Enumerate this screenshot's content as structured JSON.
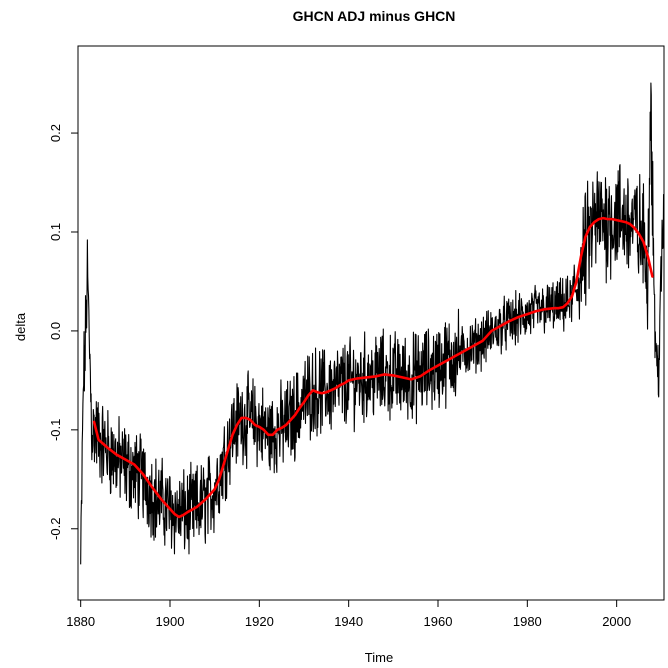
{
  "chart_data": {
    "type": "line",
    "title": "GHCN ADJ minus GHCN",
    "xlabel": "Time",
    "ylabel": "delta",
    "xlim": [
      1879.4,
      2010.6
    ],
    "ylim": [
      -0.272,
      0.288
    ],
    "x_ticks": [
      1880,
      1900,
      1920,
      1940,
      1960,
      1980,
      2000
    ],
    "y_ticks": [
      -0.2,
      -0.1,
      0.0,
      0.1,
      0.2
    ],
    "x_tick_labels": [
      "1880",
      "1900",
      "1920",
      "1940",
      "1960",
      "1980",
      "2000"
    ],
    "y_tick_labels": [
      "-0.2",
      "-0.1",
      "0.0",
      "0.1",
      "0.2"
    ],
    "grid": false,
    "series": [
      {
        "kind": "monthly",
        "color": "#000000",
        "x_start": 1880.0,
        "x_step": 0.083333,
        "anchors": [
          [
            1880.0,
            -0.24
          ],
          [
            1880.3,
            -0.15
          ],
          [
            1880.6,
            -0.05
          ],
          [
            1881.0,
            -0.02
          ],
          [
            1881.5,
            0.06
          ],
          [
            1882.0,
            -0.02
          ],
          [
            1882.5,
            -0.1
          ],
          [
            1883,
            -0.1
          ],
          [
            1885,
            -0.115
          ],
          [
            1888,
            -0.13
          ],
          [
            1891,
            -0.14
          ],
          [
            1894,
            -0.15
          ],
          [
            1897,
            -0.17
          ],
          [
            1900,
            -0.18
          ],
          [
            1902,
            -0.185
          ],
          [
            1904,
            -0.185
          ],
          [
            1906,
            -0.18
          ],
          [
            1908,
            -0.172
          ],
          [
            1910,
            -0.16
          ],
          [
            1912,
            -0.13
          ],
          [
            1914,
            -0.1
          ],
          [
            1916,
            -0.088
          ],
          [
            1918,
            -0.09
          ],
          [
            1920,
            -0.095
          ],
          [
            1922,
            -0.105
          ],
          [
            1924,
            -0.1
          ],
          [
            1926,
            -0.095
          ],
          [
            1928,
            -0.085
          ],
          [
            1930,
            -0.07
          ],
          [
            1932,
            -0.06
          ],
          [
            1934,
            -0.062
          ],
          [
            1937,
            -0.058
          ],
          [
            1940,
            -0.052
          ],
          [
            1943,
            -0.048
          ],
          [
            1946,
            -0.046
          ],
          [
            1950,
            -0.045
          ],
          [
            1954,
            -0.048
          ],
          [
            1958,
            -0.04
          ],
          [
            1962,
            -0.03
          ],
          [
            1966,
            -0.02
          ],
          [
            1970,
            -0.01
          ],
          [
            1974,
            0.005
          ],
          [
            1978,
            0.012
          ],
          [
            1982,
            0.02
          ],
          [
            1986,
            0.024
          ],
          [
            1988,
            0.025
          ],
          [
            1990,
            0.03
          ],
          [
            1991.5,
            0.05
          ],
          [
            1993,
            0.08
          ],
          [
            1995,
            0.11
          ],
          [
            1997,
            0.113
          ],
          [
            2000,
            0.115
          ],
          [
            2003,
            0.11
          ],
          [
            2005,
            0.1
          ],
          [
            2006,
            0.09
          ],
          [
            2007,
            0.06
          ],
          [
            2007.6,
            0.25
          ],
          [
            2008,
            0.15
          ],
          [
            2008.5,
            0.02
          ],
          [
            2009,
            -0.05
          ],
          [
            2009.5,
            -0.02
          ],
          [
            2010,
            0.05
          ],
          [
            2010.5,
            0.12
          ]
        ],
        "noise_amplitude": 0.035
      },
      {
        "kind": "smoothed",
        "color": "#ff0000",
        "points": [
          [
            1883,
            -0.092
          ],
          [
            1884,
            -0.11
          ],
          [
            1886,
            -0.118
          ],
          [
            1888,
            -0.125
          ],
          [
            1890,
            -0.13
          ],
          [
            1892,
            -0.135
          ],
          [
            1894,
            -0.145
          ],
          [
            1896,
            -0.158
          ],
          [
            1898,
            -0.17
          ],
          [
            1900,
            -0.18
          ],
          [
            1901,
            -0.185
          ],
          [
            1902,
            -0.188
          ],
          [
            1903,
            -0.186
          ],
          [
            1904,
            -0.183
          ],
          [
            1906,
            -0.178
          ],
          [
            1908,
            -0.17
          ],
          [
            1910,
            -0.16
          ],
          [
            1911,
            -0.15
          ],
          [
            1912,
            -0.135
          ],
          [
            1913,
            -0.12
          ],
          [
            1914,
            -0.105
          ],
          [
            1915,
            -0.095
          ],
          [
            1916,
            -0.088
          ],
          [
            1917,
            -0.088
          ],
          [
            1918,
            -0.09
          ],
          [
            1919,
            -0.095
          ],
          [
            1920,
            -0.097
          ],
          [
            1921,
            -0.1
          ],
          [
            1922,
            -0.105
          ],
          [
            1923,
            -0.105
          ],
          [
            1924,
            -0.1
          ],
          [
            1925,
            -0.098
          ],
          [
            1926,
            -0.095
          ],
          [
            1927,
            -0.09
          ],
          [
            1928,
            -0.085
          ],
          [
            1929,
            -0.078
          ],
          [
            1930,
            -0.072
          ],
          [
            1931,
            -0.065
          ],
          [
            1932,
            -0.06
          ],
          [
            1933,
            -0.062
          ],
          [
            1934,
            -0.063
          ],
          [
            1935,
            -0.062
          ],
          [
            1936,
            -0.06
          ],
          [
            1937,
            -0.058
          ],
          [
            1938,
            -0.055
          ],
          [
            1939,
            -0.053
          ],
          [
            1940,
            -0.05
          ],
          [
            1942,
            -0.048
          ],
          [
            1944,
            -0.047
          ],
          [
            1946,
            -0.046
          ],
          [
            1948,
            -0.044
          ],
          [
            1950,
            -0.045
          ],
          [
            1952,
            -0.047
          ],
          [
            1954,
            -0.049
          ],
          [
            1956,
            -0.046
          ],
          [
            1958,
            -0.04
          ],
          [
            1960,
            -0.035
          ],
          [
            1962,
            -0.03
          ],
          [
            1964,
            -0.025
          ],
          [
            1966,
            -0.02
          ],
          [
            1968,
            -0.015
          ],
          [
            1970,
            -0.01
          ],
          [
            1972,
            0.0
          ],
          [
            1974,
            0.005
          ],
          [
            1976,
            0.01
          ],
          [
            1978,
            0.014
          ],
          [
            1980,
            0.017
          ],
          [
            1982,
            0.02
          ],
          [
            1984,
            0.022
          ],
          [
            1986,
            0.023
          ],
          [
            1987,
            0.023
          ],
          [
            1988,
            0.024
          ],
          [
            1989,
            0.028
          ],
          [
            1990,
            0.035
          ],
          [
            1991,
            0.05
          ],
          [
            1992,
            0.075
          ],
          [
            1993,
            0.095
          ],
          [
            1994,
            0.105
          ],
          [
            1995,
            0.11
          ],
          [
            1996,
            0.113
          ],
          [
            1997,
            0.114
          ],
          [
            1998,
            0.113
          ],
          [
            1999,
            0.113
          ],
          [
            2000,
            0.112
          ],
          [
            2001,
            0.111
          ],
          [
            2002,
            0.11
          ],
          [
            2003,
            0.108
          ],
          [
            2004,
            0.104
          ],
          [
            2005,
            0.098
          ],
          [
            2006,
            0.09
          ],
          [
            2007,
            0.075
          ],
          [
            2008,
            0.055
          ]
        ]
      }
    ]
  }
}
